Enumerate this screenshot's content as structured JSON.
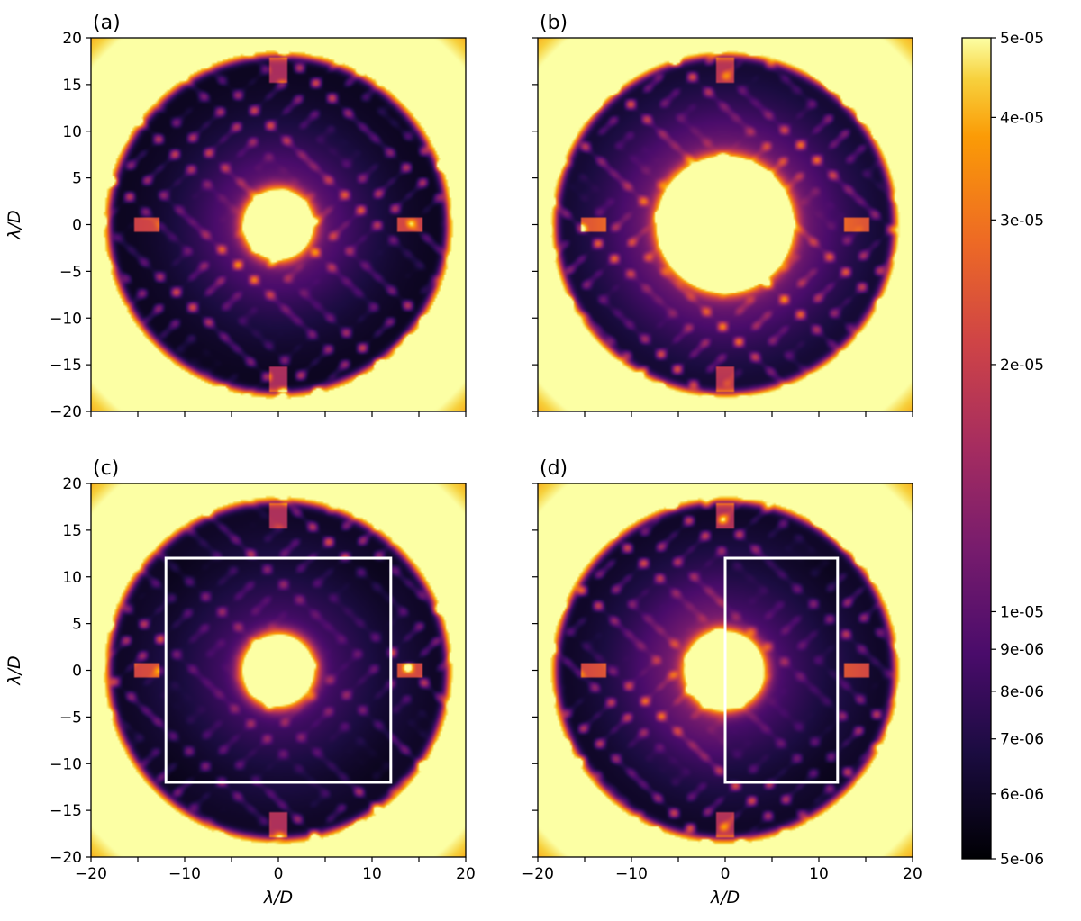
{
  "chart_data": {
    "type": "heatmap",
    "colormap": "inferno",
    "color_scale": "log",
    "colorbar": {
      "range": [
        5e-06,
        5e-05
      ],
      "ticks": [
        5e-06,
        6e-06,
        7e-06,
        8e-06,
        9e-06,
        1e-05,
        2e-05,
        3e-05,
        4e-05,
        5e-05
      ],
      "tick_labels": [
        "5e-06",
        "6e-06",
        "7e-06",
        "8e-06",
        "9e-06",
        "1e-05",
        "2e-05",
        "3e-05",
        "4e-05",
        "5e-05"
      ]
    },
    "xlabel": "λ/D",
    "ylabel": "λ/D",
    "xlim": [
      -20,
      20
    ],
    "ylim": [
      -20,
      20
    ],
    "ticks": [
      -20,
      -15,
      -10,
      -5,
      0,
      5,
      10,
      15,
      20
    ],
    "x_tick_labels": [
      "−20",
      "−10",
      "0",
      "10",
      "20"
    ],
    "y_tick_labels": [
      "20",
      "15",
      "10",
      "5",
      "0",
      "−5",
      "−10",
      "−15",
      "−20"
    ],
    "panels": [
      {
        "tag": "(a)",
        "core_radius": 3.0,
        "halo_level": 0.35,
        "halo_radius": 9,
        "region": null
      },
      {
        "tag": "(b)",
        "core_radius": 6.5,
        "halo_level": 0.55,
        "halo_radius": 11,
        "region": null
      },
      {
        "tag": "(c)",
        "core_radius": 3.2,
        "halo_level": 0.4,
        "halo_radius": 10,
        "region": {
          "x0": -12,
          "x1": 12,
          "y0": -12,
          "y1": 12
        }
      },
      {
        "tag": "(d)",
        "core_radius": 3.5,
        "halo_level": 0.45,
        "halo_radius": 10,
        "region": {
          "x0": 0,
          "x1": 12,
          "y0": -12,
          "y1": 12
        }
      }
    ]
  }
}
